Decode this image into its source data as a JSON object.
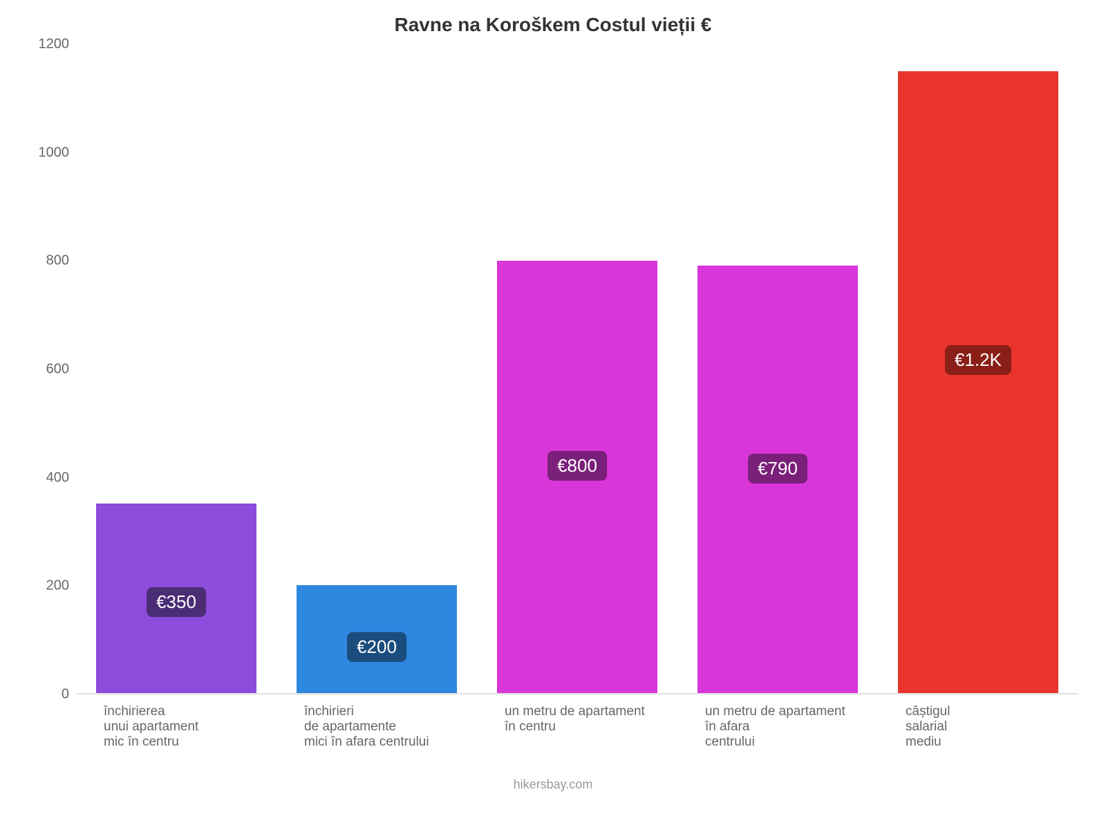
{
  "chart": {
    "type": "bar",
    "title": "Ravne na Koroškem Costul vieții €",
    "title_fontsize": 28,
    "title_color": "#333333",
    "background_color": "#ffffff",
    "attribution": "hikersbay.com",
    "attribution_fontsize": 18,
    "attribution_color": "#999999",
    "y_axis": {
      "min": 0,
      "max": 1200,
      "ticks": [
        0,
        200,
        400,
        600,
        800,
        1000,
        1200
      ],
      "label_color": "#666666",
      "label_fontsize": 20,
      "axis_line_color": "#e0e0e0"
    },
    "x_axis": {
      "label_color": "#666666",
      "label_fontsize": 19
    },
    "bar_width_pct": 80,
    "data_label_fontsize": 26,
    "data_label_text_color": "#ffffff",
    "data_label_radius": 8,
    "bars": [
      {
        "category": "închirierea\nunui apartament\nmic în centru",
        "value": 350,
        "display": "€350",
        "bar_color": "#8d4cdb",
        "label_bg": "#4b2d75"
      },
      {
        "category": "închirieri\nde apartamente\nmici în afara centrului",
        "value": 200,
        "display": "€200",
        "bar_color": "#2f88e0",
        "label_bg": "#1a4c7d"
      },
      {
        "category": "un metru de apartament\nîn centru",
        "value": 800,
        "display": "€800",
        "bar_color": "#d936d9",
        "label_bg": "#7a1f7a"
      },
      {
        "category": "un metru de apartament\nîn afara\ncentrului",
        "value": 790,
        "display": "€790",
        "bar_color": "#d936d9",
        "label_bg": "#7a1f7a"
      },
      {
        "category": "câștigul\nsalarial\nmediu",
        "value": 1150,
        "display": "€1.2K",
        "bar_color": "#e8342c",
        "label_bg": "#8a1f18"
      }
    ]
  }
}
